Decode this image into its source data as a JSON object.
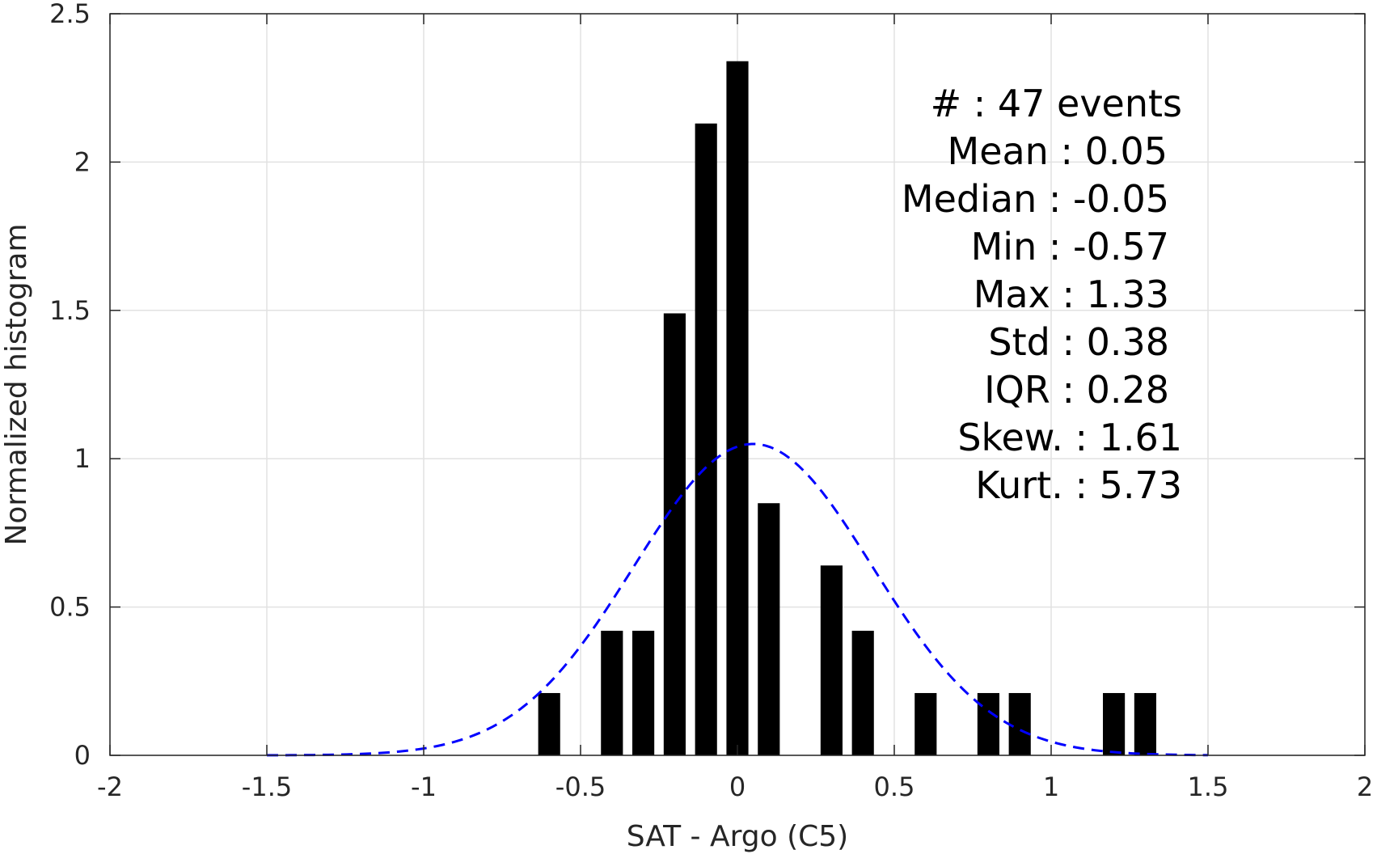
{
  "chart_data": {
    "type": "bar",
    "xlabel": "SAT - Argo (C5)",
    "ylabel": "Normalized histogram",
    "xlim": [
      -2,
      2
    ],
    "ylim": [
      0,
      2.5
    ],
    "xticks": [
      -2,
      -1.5,
      -1,
      -0.5,
      0,
      0.5,
      1,
      1.5,
      2
    ],
    "xtick_labels": [
      "-2",
      "-1.5",
      "-1",
      "-0.5",
      "0",
      "0.5",
      "1",
      "1.5",
      "2"
    ],
    "yticks": [
      0,
      0.5,
      1,
      1.5,
      2,
      2.5
    ],
    "ytick_labels": [
      "0",
      "0.5",
      "1",
      "1.5",
      "2",
      "2.5"
    ],
    "grid": true,
    "bar_color": "#000000",
    "bar_width": 0.07,
    "series": [
      {
        "bins": [
          {
            "x": -0.6,
            "value": 0.21
          },
          {
            "x": -0.4,
            "value": 0.42
          },
          {
            "x": -0.3,
            "value": 0.42
          },
          {
            "x": -0.2,
            "value": 1.49
          },
          {
            "x": -0.1,
            "value": 2.13
          },
          {
            "x": 0.0,
            "value": 2.34
          },
          {
            "x": 0.1,
            "value": 0.85
          },
          {
            "x": 0.3,
            "value": 0.64
          },
          {
            "x": 0.4,
            "value": 0.42
          },
          {
            "x": 0.6,
            "value": 0.21
          },
          {
            "x": 0.8,
            "value": 0.21
          },
          {
            "x": 0.9,
            "value": 0.21
          },
          {
            "x": 1.2,
            "value": 0.21
          },
          {
            "x": 1.3,
            "value": 0.21
          }
        ]
      }
    ],
    "fit_curve": {
      "style": "dashed",
      "color": "#0000ff",
      "mean": 0.05,
      "std": 0.38,
      "x_range": [
        -1.5,
        1.5
      ]
    },
    "stats": [
      {
        "label": "#  : 47 events",
        "key": "count"
      },
      {
        "label": "Mean : 0.05",
        "key": "mean"
      },
      {
        "label": "Median : -0.05",
        "key": "median"
      },
      {
        "label": "Min : -0.57",
        "key": "min"
      },
      {
        "label": "Max : 1.33",
        "key": "max"
      },
      {
        "label": "Std : 0.38",
        "key": "std"
      },
      {
        "label": "IQR : 0.28",
        "key": "iqr"
      },
      {
        "label": "Skew. : 1.61",
        "key": "skew"
      },
      {
        "label": "Kurt. : 5.73",
        "key": "kurt"
      }
    ]
  }
}
